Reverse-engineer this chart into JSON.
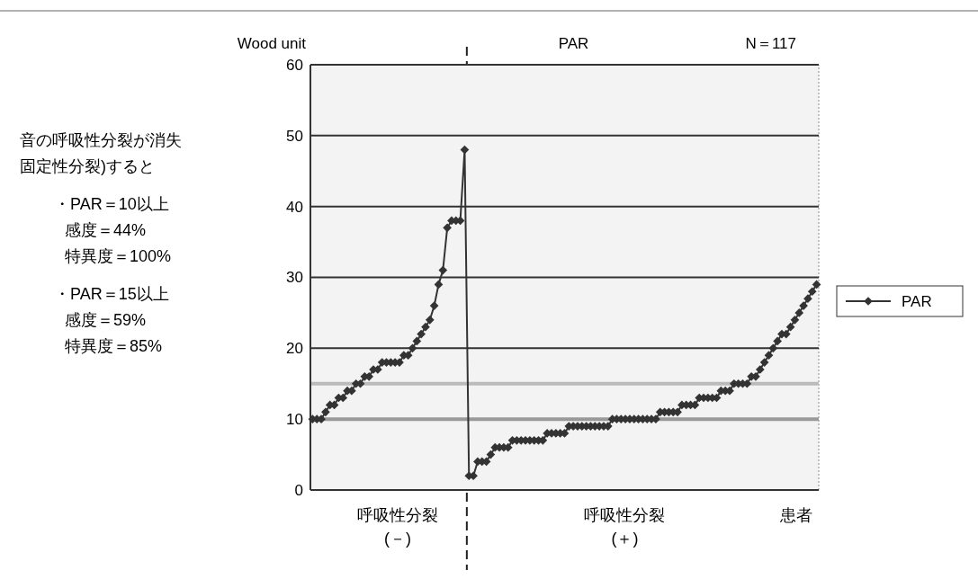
{
  "chart_data": {
    "type": "line",
    "title": "PAR",
    "subtitle": "N＝117",
    "ylabel": "Wood unit",
    "xlabel": "患者",
    "categories": [
      null,
      null,
      null,
      null,
      null,
      null,
      null,
      null,
      null,
      null,
      null,
      null,
      null,
      null,
      null,
      null,
      null,
      null,
      null,
      null,
      null,
      null,
      null,
      null,
      null,
      null,
      null,
      null,
      null,
      null,
      null,
      null,
      null,
      null,
      null,
      null,
      null,
      null,
      null,
      null,
      null,
      null,
      null,
      null,
      null,
      null,
      null,
      null,
      null,
      null,
      null,
      null,
      null,
      null,
      null,
      null,
      null,
      null,
      null,
      null,
      null,
      null,
      null,
      null,
      null,
      null,
      null,
      null,
      null,
      null,
      null,
      null,
      null,
      null,
      null,
      null,
      null,
      null,
      null,
      null,
      null,
      null,
      null,
      null,
      null,
      null,
      null,
      null,
      null,
      null,
      null,
      null,
      null,
      null,
      null,
      null,
      null,
      null,
      null,
      null,
      null,
      null,
      null,
      null,
      null,
      null,
      null,
      null,
      null,
      null,
      null,
      null,
      null,
      null,
      null,
      null,
      null
    ],
    "series": [
      {
        "name": "PAR",
        "color": "#333333",
        "values": [
          10,
          10,
          10,
          11,
          12,
          12,
          13,
          13,
          14,
          14,
          15,
          15,
          16,
          16,
          17,
          17,
          18,
          18,
          18,
          18,
          18,
          19,
          19,
          20,
          21,
          22,
          23,
          24,
          26,
          29,
          31,
          37,
          38,
          38,
          38,
          48,
          2,
          2,
          4,
          4,
          4,
          5,
          6,
          6,
          6,
          6,
          7,
          7,
          7,
          7,
          7,
          7,
          7,
          7,
          8,
          8,
          8,
          8,
          8,
          9,
          9,
          9,
          9,
          9,
          9,
          9,
          9,
          9,
          9,
          10,
          10,
          10,
          10,
          10,
          10,
          10,
          10,
          10,
          10,
          10,
          11,
          11,
          11,
          11,
          11,
          12,
          12,
          12,
          12,
          13,
          13,
          13,
          13,
          13,
          14,
          14,
          14,
          15,
          15,
          15,
          15,
          16,
          16,
          17,
          18,
          19,
          20,
          21,
          22,
          22,
          23,
          24,
          25,
          26,
          27,
          28,
          29
        ]
      }
    ],
    "ylim": [
      0,
      60
    ],
    "yticks": [
      0,
      10,
      20,
      30,
      40,
      50,
      60
    ],
    "grid": "y",
    "legend": "right",
    "marker": "diamond",
    "line_style": "solid",
    "tick_labels": "y",
    "ref_lines": [
      {
        "axis": "y",
        "value": 10,
        "color": "#999999"
      },
      {
        "axis": "y",
        "value": 15,
        "color": "#bbbbbb"
      }
    ],
    "annotations": [
      "音の呼吸性分裂が消失",
      "固定性分裂)すると",
      "・PAR＝10以上",
      "感度＝44%",
      "特異度＝100%",
      "・PAR＝15以上",
      "感度＝59%",
      "特異度＝85%",
      "呼吸性分裂",
      "(－)",
      "呼吸性分裂",
      "(＋)"
    ]
  }
}
